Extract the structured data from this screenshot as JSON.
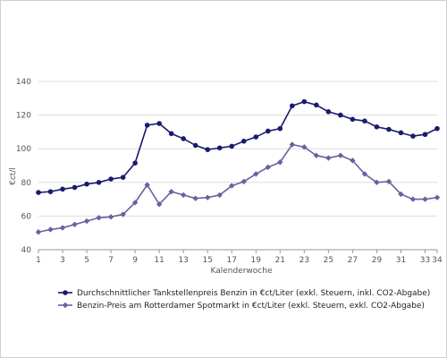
{
  "chart_data": {
    "type": "line",
    "title": "",
    "xlabel": "Kalenderwoche",
    "ylabel": "€ct/l",
    "ylim": [
      40,
      140
    ],
    "yticks": [
      40,
      60,
      80,
      100,
      120,
      140
    ],
    "xlim": [
      1,
      34
    ],
    "xticks": [
      1,
      3,
      5,
      7,
      9,
      11,
      13,
      15,
      17,
      19,
      21,
      23,
      25,
      27,
      29,
      31,
      33,
      34
    ],
    "grid": "horizontal",
    "legend_position": "bottom",
    "x": [
      1,
      2,
      3,
      4,
      5,
      6,
      7,
      8,
      9,
      10,
      11,
      12,
      13,
      14,
      15,
      16,
      17,
      18,
      19,
      20,
      21,
      22,
      23,
      24,
      25,
      26,
      27,
      28,
      29,
      30,
      31,
      32,
      33,
      34
    ],
    "series": [
      {
        "name": "Durchschnittlicher Tankstellenpreis Benzin in €ct/Liter (exkl. Steuern, inkl. CO2-Abgabe)",
        "color": "#1a1a6e",
        "marker": "circle",
        "values": [
          74,
          74.5,
          76,
          77,
          79,
          80,
          82,
          83,
          91.5,
          114,
          115,
          109,
          106,
          102,
          99.5,
          100.5,
          101.5,
          104.5,
          107,
          110.5,
          112,
          125.5,
          128,
          126,
          122,
          120,
          117.5,
          116.5,
          113,
          111.5,
          109.5,
          107.5,
          108.5,
          112
        ]
      },
      {
        "name": "Benzin-Preis am Rotterdamer Spotmarkt in €ct/Liter (exkl. Steuern, exkl. CO2-Abgabe)",
        "color": "#6d5f9f",
        "marker": "diamond",
        "values": [
          50.5,
          52,
          53,
          55,
          57,
          59,
          59.5,
          61,
          68,
          78.5,
          67,
          74.5,
          72.5,
          70.5,
          71,
          72.5,
          78,
          80.5,
          85,
          89,
          92,
          102.5,
          101,
          96,
          94.5,
          96,
          93,
          85,
          80,
          80.5,
          73,
          70,
          70,
          71
        ]
      }
    ]
  }
}
